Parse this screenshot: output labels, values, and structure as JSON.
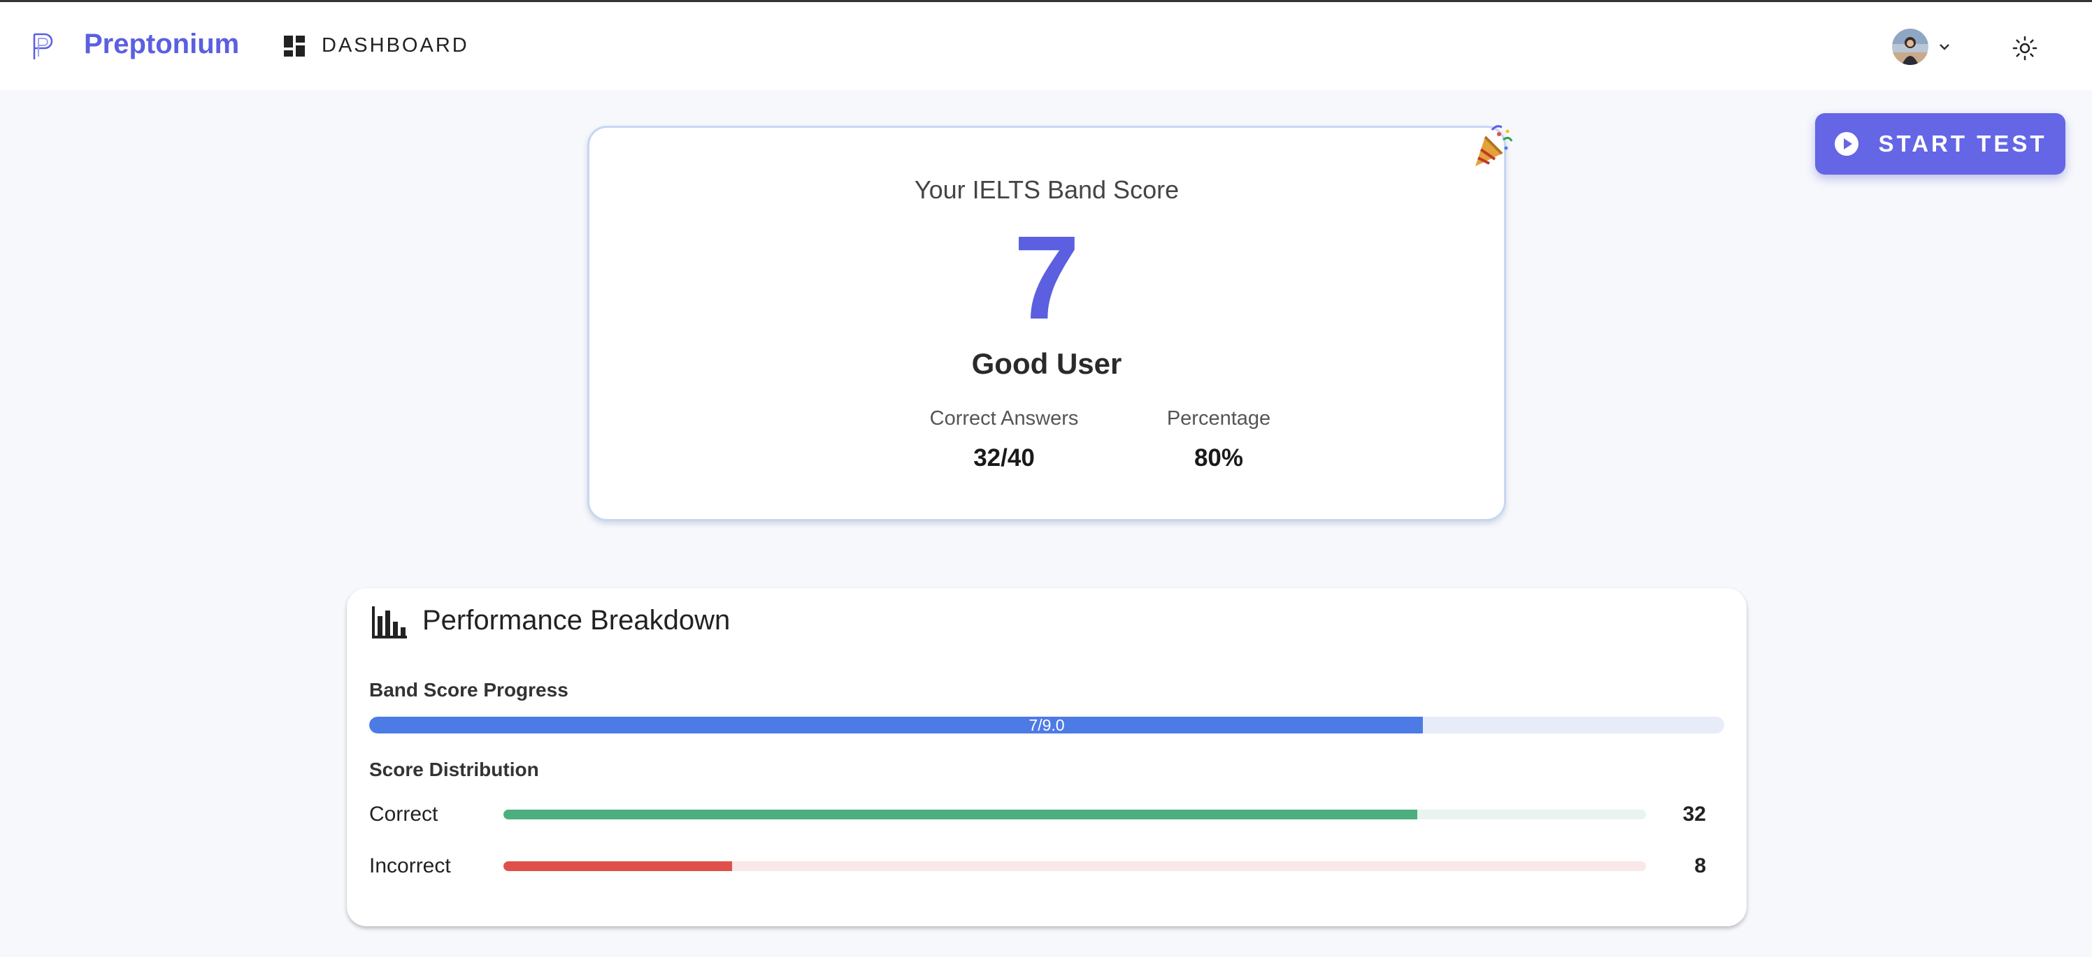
{
  "header": {
    "brand": "Preptonium",
    "nav_dashboard": "DASHBOARD",
    "icons": {
      "logo": "preptonium-logo-icon",
      "dashboard": "grid-icon",
      "theme": "sun-icon",
      "menu": "chevron-down-icon"
    }
  },
  "actions": {
    "start_test": "START TEST",
    "start_icon": "play-icon"
  },
  "score_card": {
    "title": "Your IELTS Band Score",
    "band_score": "7",
    "level": "Good User",
    "stats": [
      {
        "label": "Correct Answers",
        "value": "32/40"
      },
      {
        "label": "Percentage",
        "value": "80%"
      }
    ],
    "decoration_icon": "party-popper-icon"
  },
  "performance": {
    "title": "Performance Breakdown",
    "icon": "bar-chart-icon",
    "band_progress": {
      "heading": "Band Score Progress",
      "label": "7/9.0",
      "value": 7,
      "max": 9.0
    },
    "distribution": {
      "heading": "Score Distribution",
      "rows": [
        {
          "name": "Correct",
          "count": "32",
          "fraction": 0.8,
          "color": "#4caf7d",
          "track": "#e9f4ee"
        },
        {
          "name": "Incorrect",
          "count": "8",
          "fraction": 0.2,
          "color": "#e0504b",
          "track": "#f9e8e7"
        }
      ]
    }
  },
  "colors": {
    "accent": "#5b5fe0",
    "button": "#6466e6",
    "progress": "#4d7be6"
  }
}
